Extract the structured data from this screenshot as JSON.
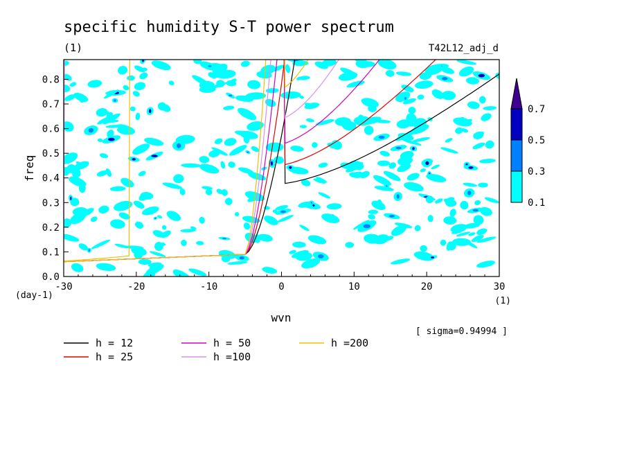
{
  "chart_data": {
    "type": "heatmap",
    "title": "specific humidity S-T power spectrum",
    "units_note": "(1)",
    "run_label": "T42L12_adj_d",
    "xlabel": "wvn",
    "xlabel_unit": "(1)",
    "ylabel": "freq",
    "ylabel_unit": "(day-1)",
    "sigma_note": "[ sigma=0.94994 ]",
    "xlim": [
      -30,
      30
    ],
    "ylim": [
      0,
      0.88
    ],
    "x_ticks": [
      "-30",
      "-20",
      "-10",
      "0",
      "10",
      "20",
      "30"
    ],
    "x_tick_values": [
      -30,
      -20,
      -10,
      0,
      10,
      20,
      30
    ],
    "y_ticks": [
      "0.0",
      "0.1",
      "0.2",
      "0.3",
      "0.4",
      "0.5",
      "0.6",
      "0.7",
      "0.8"
    ],
    "y_tick_values": [
      0,
      0.1,
      0.2,
      0.3,
      0.4,
      0.5,
      0.6,
      0.7,
      0.8
    ],
    "colorbar": {
      "levels": [
        "0.1",
        "0.3",
        "0.5",
        "0.7"
      ],
      "colors": [
        "#00ffff",
        "#0080ff",
        "#0000c0",
        "#400090"
      ]
    },
    "dispersion_curves": [
      {
        "label": "h = 12",
        "h": 12,
        "color": "#000000"
      },
      {
        "label": "h = 25",
        "h": 25,
        "color": "#e00000"
      },
      {
        "label": "h = 50",
        "h": 50,
        "color": "#d000c0"
      },
      {
        "label": "h =100",
        "h": 100,
        "color": "#d890e8"
      },
      {
        "label": "h =200",
        "h": 200,
        "color": "#f0c000"
      }
    ]
  }
}
